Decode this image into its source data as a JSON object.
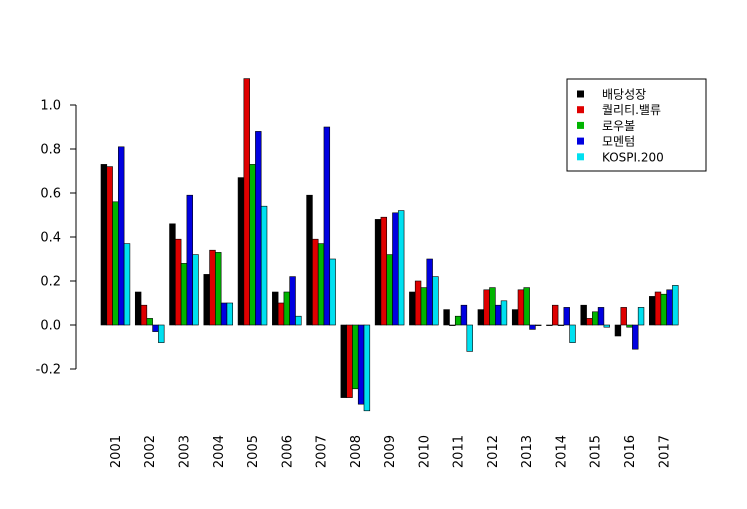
{
  "chart_data": {
    "type": "bar",
    "title": "",
    "xlabel": "",
    "ylabel": "",
    "categories": [
      "2001",
      "2002",
      "2003",
      "2004",
      "2005",
      "2006",
      "2007",
      "2008",
      "2009",
      "2010",
      "2011",
      "2012",
      "2013",
      "2014",
      "2015",
      "2016",
      "2017"
    ],
    "y_ticks": [
      "-0.2",
      "0.0",
      "0.2",
      "0.4",
      "0.6",
      "0.8",
      "1.0"
    ],
    "legend_position": "top-right",
    "grid": false,
    "series": [
      {
        "name": "배당성장",
        "color": "#000000",
        "values": [
          0.73,
          0.15,
          0.46,
          0.23,
          0.67,
          0.15,
          0.59,
          -0.33,
          0.48,
          0.15,
          0.07,
          0.07,
          0.07,
          0.0,
          0.09,
          -0.05,
          0.13
        ]
      },
      {
        "name": "퀄리티.밸류",
        "color": "#DF0000",
        "values": [
          0.72,
          0.09,
          0.39,
          0.34,
          1.12,
          0.1,
          0.39,
          -0.33,
          0.49,
          0.2,
          0.0,
          0.16,
          0.16,
          0.09,
          0.03,
          0.08,
          0.15
        ]
      },
      {
        "name": "로우볼",
        "color": "#00B400",
        "values": [
          0.56,
          0.03,
          0.28,
          0.33,
          0.73,
          0.15,
          0.37,
          -0.29,
          0.32,
          0.17,
          0.04,
          0.17,
          0.17,
          0.0,
          0.06,
          -0.01,
          0.14
        ]
      },
      {
        "name": "모멘텀",
        "color": "#0000E0",
        "values": [
          0.81,
          -0.03,
          0.59,
          0.1,
          0.88,
          0.22,
          0.9,
          -0.36,
          0.51,
          0.3,
          0.09,
          0.09,
          -0.02,
          0.08,
          0.08,
          -0.11,
          0.16
        ]
      },
      {
        "name": "KOSPI.200",
        "color": "#00E0F0",
        "values": [
          0.37,
          -0.08,
          0.32,
          0.1,
          0.54,
          0.04,
          0.3,
          -0.39,
          0.52,
          0.22,
          -0.12,
          0.11,
          0.0,
          -0.08,
          -0.01,
          0.08,
          0.18
        ]
      }
    ]
  }
}
